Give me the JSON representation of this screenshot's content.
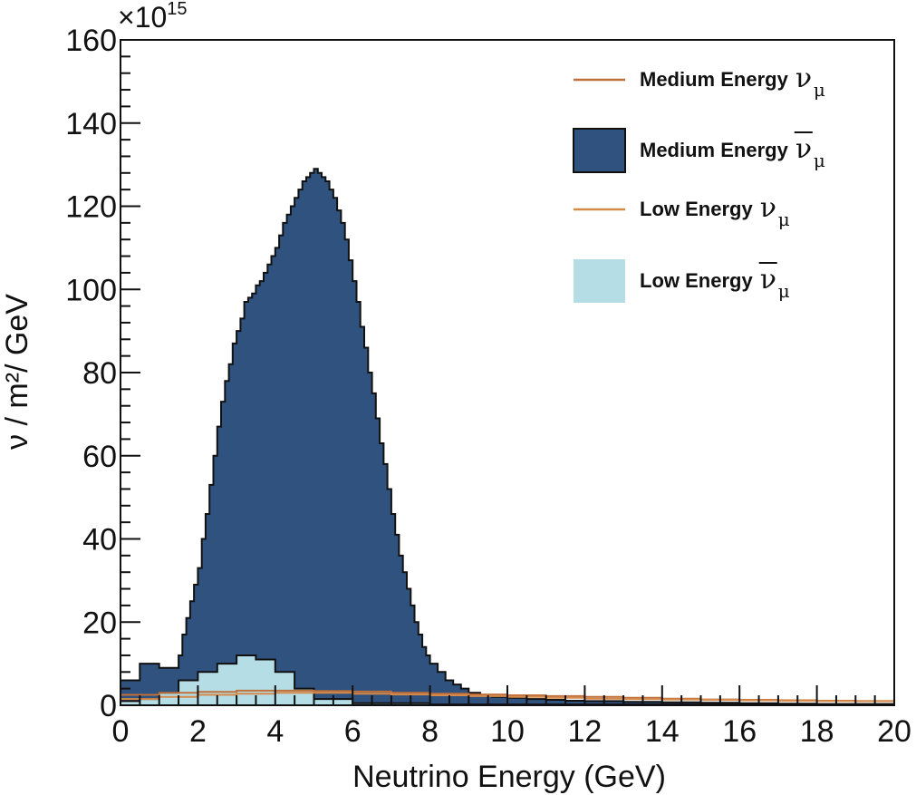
{
  "chart_data": {
    "type": "histogram",
    "xlabel": "Neutrino Energy (GeV)",
    "ylabel": "ν / m²/ GeV",
    "y_multiplier": "×10",
    "y_multiplier_exp": "15",
    "xlim": [
      0,
      20
    ],
    "ylim": [
      0,
      160
    ],
    "x_ticks": [
      "0",
      "2",
      "4",
      "6",
      "8",
      "10",
      "12",
      "14",
      "16",
      "18",
      "20"
    ],
    "y_ticks": [
      "0",
      "20",
      "40",
      "60",
      "80",
      "100",
      "120",
      "140",
      "160"
    ],
    "legend_position": "top-right",
    "colors": {
      "medium_nu": "#c0703a",
      "medium_nubar": "#2f527f",
      "low_nu": "#d58a4a",
      "low_nubar": "#b4dde6"
    },
    "legend": [
      {
        "text": "Medium Energy",
        "nu": "ν",
        "sub": "μ",
        "bar": false,
        "kind": "line",
        "color": "#c0703a"
      },
      {
        "text": "Medium Energy",
        "nu": "ν",
        "sub": "μ",
        "bar": true,
        "kind": "fill",
        "color": "#2f527f"
      },
      {
        "text": "Low Energy",
        "nu": "ν",
        "sub": "μ",
        "bar": false,
        "kind": "line",
        "color": "#d58a4a"
      },
      {
        "text": "Low Energy",
        "nu": "ν",
        "sub": "μ",
        "bar": true,
        "kind": "fill",
        "color": "#b4dde6"
      }
    ],
    "series": [
      {
        "name": "Medium Energy ν̄μ",
        "kind": "filled-step",
        "color": "#2f527f",
        "x": [
          0,
          0.5,
          1.0,
          1.5,
          1.6,
          1.7,
          1.8,
          1.9,
          2.0,
          2.1,
          2.2,
          2.3,
          2.4,
          2.5,
          2.6,
          2.7,
          2.8,
          2.9,
          3.0,
          3.1,
          3.2,
          3.3,
          3.4,
          3.5,
          3.6,
          3.7,
          3.8,
          3.9,
          4.0,
          4.1,
          4.2,
          4.3,
          4.4,
          4.5,
          4.6,
          4.7,
          4.8,
          4.9,
          5.0,
          5.1,
          5.2,
          5.3,
          5.4,
          5.5,
          5.6,
          5.7,
          5.8,
          5.9,
          6.0,
          6.1,
          6.2,
          6.3,
          6.4,
          6.5,
          6.6,
          6.7,
          6.8,
          6.9,
          7.0,
          7.1,
          7.2,
          7.3,
          7.4,
          7.5,
          7.6,
          7.7,
          7.8,
          7.9,
          8.0,
          8.2,
          8.4,
          8.6,
          8.8,
          9.0,
          9.3,
          9.6,
          10.0,
          10.5,
          11.0,
          11.5,
          12.0,
          13.0,
          14.0,
          15.0,
          16.0,
          17.0,
          18.0,
          19.0,
          20.0
        ],
        "y": [
          6,
          10,
          9,
          12,
          17,
          21,
          25,
          29,
          33,
          40,
          46,
          53,
          60,
          67,
          73,
          78,
          82,
          87,
          90,
          93,
          97,
          98,
          99,
          101,
          102,
          104,
          106,
          108,
          110,
          113,
          116,
          118,
          120,
          122,
          124,
          126,
          127,
          128,
          129,
          128,
          127,
          126,
          124,
          122,
          119,
          116,
          112,
          107,
          102,
          97,
          91,
          86,
          80,
          75,
          69,
          63,
          58,
          52,
          46,
          41,
          36,
          32,
          28,
          24,
          20,
          17,
          14,
          12,
          10,
          8,
          6,
          5,
          4,
          3,
          2.5,
          2,
          1.8,
          1.5,
          1.3,
          1.1,
          1.0,
          0.8,
          0.7,
          0.6,
          0.5,
          0.4,
          0.3,
          0.3,
          0.3
        ]
      },
      {
        "name": "Low Energy ν̄μ",
        "kind": "filled-step",
        "color": "#b4dde6",
        "x": [
          0,
          0.5,
          1.0,
          1.5,
          2.0,
          2.5,
          3.0,
          3.5,
          4.0,
          4.5,
          5.0,
          6.0,
          8.0,
          20.0
        ],
        "y": [
          1,
          1.5,
          3,
          6,
          8,
          10,
          12,
          11,
          8,
          4,
          1.5,
          0.5,
          0.2,
          0.2
        ]
      },
      {
        "name": "Medium Energy νμ",
        "kind": "step-line",
        "color": "#c0703a",
        "x": [
          0,
          1,
          2,
          3,
          4,
          5,
          6,
          7,
          8,
          9,
          10,
          11,
          12,
          13,
          14,
          15,
          16,
          17,
          18,
          19,
          20
        ],
        "y": [
          2.5,
          3,
          3.2,
          3.5,
          3.5,
          3.4,
          3.3,
          3.0,
          2.8,
          2.6,
          2.4,
          2.2,
          2.0,
          1.8,
          1.6,
          1.4,
          1.3,
          1.2,
          1.1,
          1.0,
          1.0
        ]
      },
      {
        "name": "Low Energy νμ",
        "kind": "step-line",
        "color": "#d58a4a",
        "x": [
          0,
          1,
          2,
          3,
          4,
          5,
          6,
          7,
          8,
          9,
          10,
          11,
          12,
          13,
          14,
          15,
          16,
          17,
          18,
          19,
          20
        ],
        "y": [
          1.5,
          2,
          2.5,
          2.8,
          3.0,
          3.0,
          2.8,
          2.6,
          2.4,
          2.2,
          2.0,
          1.8,
          1.6,
          1.5,
          1.4,
          1.3,
          1.2,
          1.1,
          1.0,
          1.0,
          1.0
        ]
      }
    ]
  }
}
